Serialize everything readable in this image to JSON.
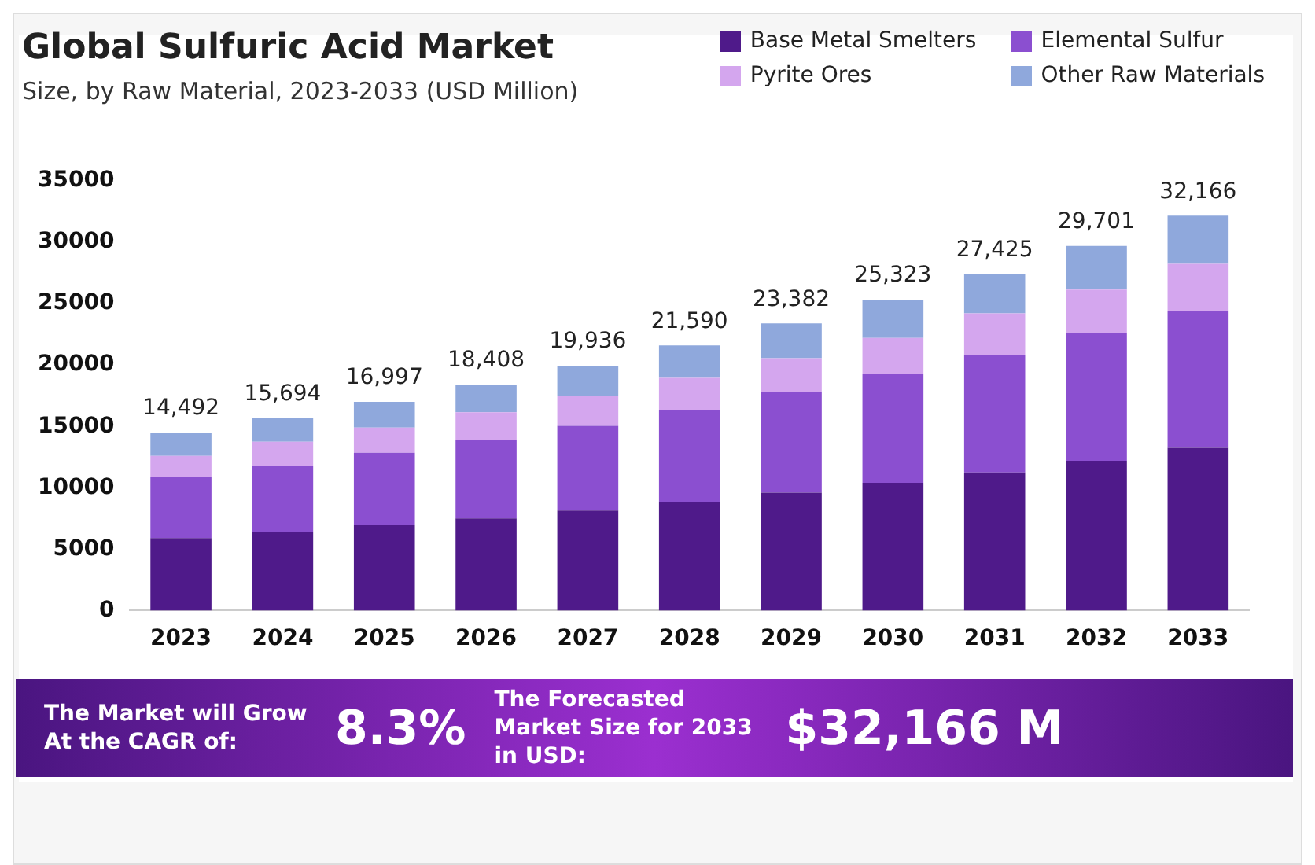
{
  "chart_data": {
    "type": "bar",
    "title": "Global Sulfuric Acid Market",
    "subtitle": "Size, by Raw Material, 2023-2033 (USD Million)",
    "categories": [
      "2023",
      "2024",
      "2025",
      "2026",
      "2027",
      "2028",
      "2029",
      "2030",
      "2031",
      "2032",
      "2033"
    ],
    "series": [
      {
        "name": "Base Metal Smelters",
        "color": "#4f1a8a",
        "values": [
          5900,
          6400,
          7000,
          7500,
          8150,
          8800,
          9600,
          10400,
          11250,
          12200,
          13250
        ]
      },
      {
        "name": "Elemental Sulfur",
        "color": "#8b4fd0",
        "values": [
          5000,
          5400,
          5850,
          6400,
          6900,
          7500,
          8200,
          8850,
          9600,
          10400,
          11150
        ]
      },
      {
        "name": "Pyrite Ores",
        "color": "#d4a6ee",
        "values": [
          1700,
          1950,
          2050,
          2250,
          2450,
          2650,
          2750,
          2950,
          3350,
          3550,
          3850
        ]
      },
      {
        "name": "Other Raw Materials",
        "color": "#8fa8dc",
        "values": [
          1892,
          1944,
          2097,
          2258,
          2436,
          2640,
          2832,
          3123,
          3225,
          3551,
          3916
        ]
      }
    ],
    "stacked": true,
    "ylim": [
      0,
      35000
    ],
    "yticks": [
      0,
      5000,
      10000,
      15000,
      20000,
      25000,
      30000,
      35000
    ],
    "grid": false,
    "legend": "top right",
    "totals": [
      "14,492",
      "15,694",
      "16,997",
      "18,408",
      "19,936",
      "21,590",
      "23,382",
      "25,323",
      "27,425",
      "29,701",
      "32,166"
    ],
    "annotations": [
      "The Market will Grow At the CAGR of:",
      "8.3%",
      "The Forecasted Market Size for 2033 in USD:",
      "$32,166 M"
    ]
  }
}
